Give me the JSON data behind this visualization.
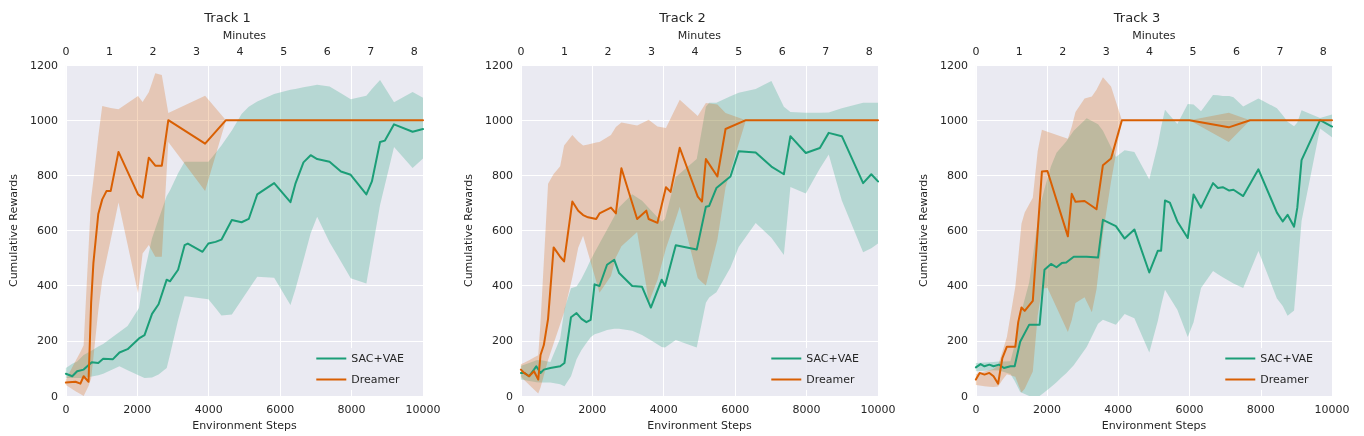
{
  "chart_data": [
    {
      "type": "line",
      "title": "Track 1",
      "xlabel": "Environment Steps",
      "ylabel": "Cumulative Rewards",
      "x2label": "Minutes",
      "xlim": [
        0,
        10000
      ],
      "xticks": [
        0,
        2000,
        4000,
        6000,
        8000,
        10000
      ],
      "ylim": [
        0,
        1200
      ],
      "yticks": [
        0,
        200,
        400,
        600,
        800,
        1000,
        1200
      ],
      "x2lim": [
        0,
        8.2
      ],
      "x2ticks": [
        0,
        1,
        2,
        3,
        4,
        5,
        6,
        7,
        8
      ],
      "grid": true,
      "legend": "bottom right",
      "line_style": "solid",
      "series": [
        {
          "name": "SAC+VAE",
          "color": "#1b9e77",
          "x": [
            0,
            178,
            315,
            497,
            725,
            907,
            1044,
            1318,
            1500,
            1728,
            2047,
            2202,
            2412,
            2595,
            2823,
            2914,
            3142,
            3324,
            3415,
            3826,
            3990,
            4191,
            4355,
            4647,
            4920,
            5121,
            5358,
            5832,
            6288,
            6425,
            6653,
            6854,
            7036,
            7383,
            7702,
            7976,
            8414,
            8569,
            8797,
            8934,
            9189,
            9709,
            10000
          ],
          "values": [
            81,
            72,
            90,
            96,
            123,
            120,
            135,
            134,
            158,
            170,
            209,
            221,
            298,
            333,
            422,
            416,
            458,
            547,
            553,
            523,
            553,
            559,
            567,
            638,
            630,
            642,
            731,
            772,
            703,
            769,
            847,
            873,
            859,
            849,
            814,
            802,
            731,
            778,
            921,
            926,
            985,
            958,
            968
          ],
          "lower": [
            66,
            66,
            66,
            66,
            71,
            76,
            81,
            97,
            108,
            94,
            75,
            66,
            67,
            78,
            102,
            150,
            276,
            362,
            361,
            354,
            351,
            319,
            292,
            296,
            348,
            387,
            433,
            429,
            330,
            386,
            493,
            590,
            650,
            558,
            488,
            427,
            408,
            523,
            693,
            766,
            903,
            827,
            861
          ],
          "upper": [
            102,
            117,
            125,
            149,
            165,
            180,
            189,
            215,
            232,
            254,
            319,
            449,
            572,
            641,
            725,
            745,
            808,
            849,
            849,
            849,
            849,
            881,
            908,
            963,
            1022,
            1049,
            1068,
            1095,
            1110,
            1113,
            1119,
            1124,
            1128,
            1122,
            1098,
            1076,
            1089,
            1113,
            1146,
            1118,
            1065,
            1102,
            1081
          ]
        },
        {
          "name": "Dreamer",
          "color": "#d95f02",
          "x": [
            0,
            269,
            406,
            497,
            634,
            707,
            770,
            907,
            1018,
            1136,
            1254,
            1473,
            2020,
            2148,
            2321,
            2503,
            2686,
            2868,
            3898,
            4482,
            10000
          ],
          "values": [
            49,
            52,
            45,
            72,
            52,
            339,
            482,
            660,
            713,
            743,
            743,
            885,
            731,
            719,
            864,
            835,
            835,
            1000,
            915,
            1000,
            1000
          ],
          "lower": [
            40,
            18,
            8,
            0,
            37,
            64,
            140,
            310,
            421,
            494,
            566,
            702,
            374,
            517,
            548,
            505,
            505,
            921,
            743,
            1000,
            1000
          ],
          "upper": [
            60,
            127,
            160,
            184,
            535,
            717,
            782,
            941,
            1051,
            1048,
            1044,
            1040,
            1088,
            1066,
            1101,
            1170,
            1164,
            1026,
            1089,
            1000,
            1000
          ]
        }
      ]
    },
    {
      "type": "line",
      "title": "Track 2",
      "xlabel": "Environment Steps",
      "ylabel": "Cumulative Rewards",
      "x2label": "Minutes",
      "xlim": [
        0,
        10000
      ],
      "xticks": [
        0,
        2000,
        4000,
        6000,
        8000,
        10000
      ],
      "ylim": [
        0,
        1200
      ],
      "yticks": [
        0,
        200,
        400,
        600,
        800,
        1000,
        1200
      ],
      "x2lim": [
        0,
        8.2
      ],
      "x2ticks": [
        0,
        1,
        2,
        3,
        4,
        5,
        6,
        7,
        8
      ],
      "grid": true,
      "legend": "bottom right",
      "line_style": "solid",
      "series": [
        {
          "name": "SAC+VAE",
          "color": "#1b9e77",
          "x": [
            0,
            92,
            229,
            367,
            431,
            550,
            642,
            825,
            1100,
            1220,
            1403,
            1559,
            1697,
            1834,
            1953,
            2063,
            2201,
            2412,
            2614,
            2751,
            3118,
            3393,
            3640,
            3943,
            4035,
            4337,
            4924,
            5180,
            5272,
            5474,
            5869,
            6098,
            6575,
            7015,
            7364,
            7547,
            7978,
            8372,
            8620,
            8987,
            9583,
            9812,
            10000
          ],
          "values": [
            84,
            84,
            72,
            96,
            108,
            84,
            96,
            102,
            108,
            120,
            286,
            301,
            280,
            268,
            276,
            405,
            399,
            476,
            494,
            446,
            399,
            396,
            321,
            422,
            399,
            547,
            531,
            686,
            689,
            754,
            796,
            887,
            883,
            832,
            804,
            942,
            881,
            899,
            954,
            942,
            772,
            804,
            778
          ],
          "lower": [
            60,
            58,
            55,
            52,
            50,
            49,
            49,
            49,
            43,
            36,
            72,
            134,
            167,
            192,
            213,
            224,
            230,
            240,
            244,
            244,
            237,
            221,
            202,
            178,
            176,
            203,
            176,
            338,
            357,
            376,
            466,
            540,
            627,
            574,
            511,
            758,
            734,
            825,
            876,
            709,
            521,
            536,
            553
          ],
          "upper": [
            110,
            114,
            120,
            126,
            130,
            131,
            128,
            124,
            209,
            316,
            391,
            397,
            425,
            461,
            493,
            520,
            553,
            603,
            651,
            684,
            732,
            708,
            674,
            632,
            642,
            794,
            859,
            1049,
            1063,
            1063,
            1087,
            1099,
            1113,
            1142,
            1049,
            1030,
            1027,
            1027,
            1028,
            1043,
            1063,
            1063,
            1063
          ]
        },
        {
          "name": "Dreamer",
          "color": "#d95f02",
          "x": [
            0,
            92,
            229,
            367,
            486,
            550,
            642,
            761,
            917,
            1100,
            1210,
            1440,
            1605,
            1742,
            1880,
            2109,
            2201,
            2522,
            2660,
            2815,
            3255,
            3512,
            3577,
            3824,
            4062,
            4191,
            4448,
            4952,
            5071,
            5180,
            5502,
            5731,
            6300,
            10000
          ],
          "values": [
            96,
            84,
            72,
            90,
            60,
            149,
            185,
            280,
            539,
            505,
            488,
            705,
            672,
            656,
            648,
            642,
            662,
            683,
            662,
            826,
            642,
            672,
            642,
            628,
            757,
            740,
            900,
            723,
            705,
            859,
            796,
            968,
            1000,
            1000
          ],
          "lower": [
            70,
            58,
            41,
            24,
            9,
            31,
            75,
            131,
            191,
            260,
            304,
            430,
            538,
            581,
            519,
            416,
            375,
            435,
            503,
            543,
            595,
            398,
            337,
            421,
            536,
            585,
            686,
            428,
            413,
            401,
            567,
            757,
            1000,
            1000
          ],
          "upper": [
            115,
            121,
            130,
            140,
            148,
            268,
            486,
            770,
            805,
            833,
            908,
            946,
            923,
            908,
            912,
            919,
            921,
            946,
            975,
            992,
            981,
            997,
            1002,
            977,
            972,
            1006,
            1074,
            1015,
            1040,
            1062,
            1057,
            1026,
            1000,
            1000
          ]
        }
      ]
    },
    {
      "type": "line",
      "title": "Track 3",
      "xlabel": "Environment Steps",
      "ylabel": "Cumulative Rewards",
      "x2label": "Minutes",
      "xlim": [
        0,
        10000
      ],
      "xticks": [
        0,
        2000,
        4000,
        6000,
        8000,
        10000
      ],
      "ylim": [
        0,
        1200
      ],
      "yticks": [
        0,
        200,
        400,
        600,
        800,
        1000,
        1200
      ],
      "x2lim": [
        0,
        8.2
      ],
      "x2ticks": [
        0,
        1,
        2,
        3,
        4,
        5,
        6,
        7,
        8
      ],
      "grid": true,
      "legend": "bottom right",
      "line_style": "solid",
      "series": [
        {
          "name": "SAC+VAE",
          "color": "#1b9e77",
          "x": [
            0,
            132,
            241,
            378,
            496,
            651,
            788,
            970,
            1089,
            1243,
            1498,
            1790,
            1926,
            2109,
            2264,
            2410,
            2537,
            2747,
            3111,
            3430,
            3567,
            3931,
            4177,
            4450,
            4869,
            5110,
            5201,
            5310,
            5447,
            5657,
            5949,
            6113,
            6322,
            6659,
            6796,
            6932,
            7115,
            7233,
            7506,
            7934,
            8453,
            8617,
            8753,
            8935,
            9026,
            9145,
            9664,
            10000
          ],
          "values": [
            104,
            116,
            108,
            114,
            108,
            114,
            102,
            108,
            108,
            197,
            259,
            259,
            458,
            479,
            467,
            482,
            484,
            505,
            505,
            502,
            639,
            616,
            571,
            604,
            448,
            527,
            527,
            709,
            701,
            633,
            573,
            731,
            683,
            772,
            754,
            757,
            745,
            748,
            725,
            822,
            665,
            633,
            657,
            614,
            683,
            855,
            1000,
            977
          ],
          "lower": [
            90,
            91,
            92,
            93,
            94,
            93,
            87,
            80,
            55,
            15,
            0,
            0,
            14,
            33,
            50,
            68,
            83,
            112,
            178,
            262,
            277,
            259,
            298,
            282,
            158,
            273,
            328,
            385,
            356,
            313,
            214,
            268,
            392,
            453,
            442,
            431,
            417,
            408,
            392,
            526,
            354,
            327,
            291,
            310,
            450,
            635,
            970,
            938
          ],
          "upper": [
            120,
            121,
            122,
            123,
            124,
            125,
            125,
            126,
            186,
            289,
            413,
            683,
            751,
            833,
            882,
            904,
            923,
            962,
            1007,
            985,
            962,
            867,
            891,
            885,
            785,
            912,
            974,
            1038,
            1017,
            986,
            1059,
            1057,
            1032,
            1091,
            1090,
            1088,
            1088,
            1083,
            1050,
            1079,
            1043,
            1018,
            994,
            978,
            992,
            1036,
            1008,
            1021
          ]
        },
        {
          "name": "Dreamer",
          "color": "#d95f02",
          "x": [
            0,
            105,
            241,
            378,
            496,
            624,
            743,
            870,
            1107,
            1189,
            1280,
            1371,
            1598,
            1736,
            1854,
            2009,
            2583,
            2692,
            2797,
            3052,
            3257,
            3387,
            3567,
            3795,
            4100,
            6000,
            7100,
            7700,
            10000
          ],
          "values": [
            60,
            84,
            78,
            84,
            72,
            45,
            138,
            179,
            179,
            268,
            321,
            309,
            345,
            600,
            814,
            816,
            579,
            733,
            704,
            707,
            689,
            677,
            837,
            861,
            1000,
            1000,
            974,
            1000,
            1000
          ],
          "lower": [
            40,
            38,
            36,
            34,
            33,
            35,
            58,
            79,
            70,
            42,
            13,
            27,
            89,
            292,
            389,
            393,
            232,
            276,
            337,
            358,
            304,
            387,
            588,
            778,
            1000,
            1000,
            921,
            1000,
            1000
          ],
          "upper": [
            80,
            84,
            89,
            94,
            98,
            112,
            161,
            214,
            396,
            501,
            625,
            665,
            719,
            888,
            965,
            958,
            933,
            976,
            1030,
            1079,
            1086,
            1110,
            1156,
            1122,
            1000,
            1000,
            1027,
            1000,
            1000
          ]
        }
      ]
    }
  ]
}
